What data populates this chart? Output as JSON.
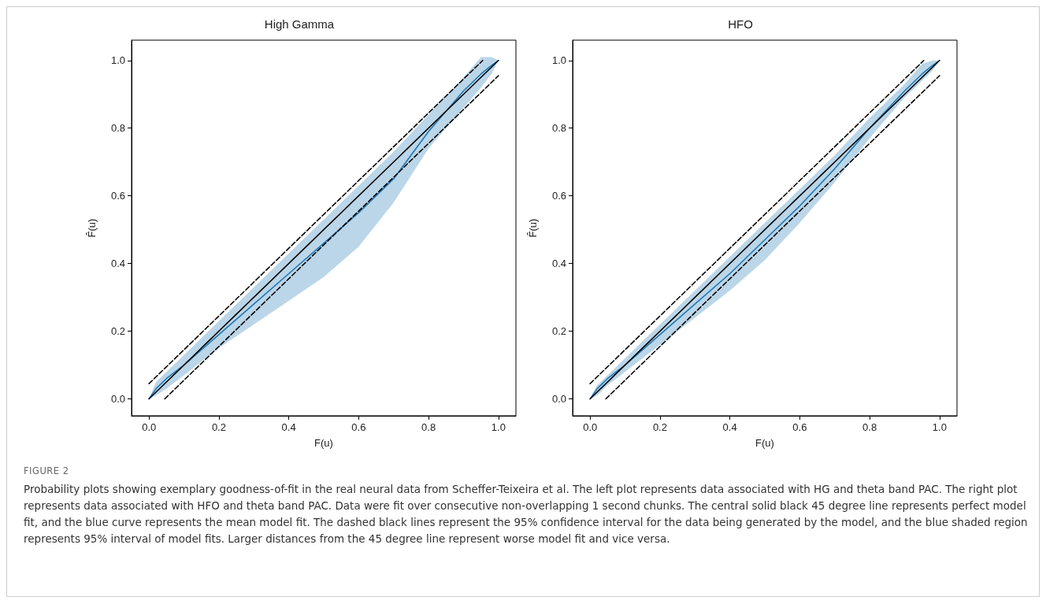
{
  "chart_data": [
    {
      "type": "line",
      "title": "High Gamma",
      "xlabel": "F(u)",
      "ylabel": "F̂(u)",
      "xlim": [
        -0.05,
        1.05
      ],
      "ylim": [
        -0.05,
        1.06
      ],
      "xticks": [
        {
          "value": 0,
          "label": "0.0"
        },
        {
          "value": 0.2,
          "label": "0.2"
        },
        {
          "value": 0.4,
          "label": "0.4"
        },
        {
          "value": 0.6,
          "label": "0.6"
        },
        {
          "value": 0.8,
          "label": "0.8"
        },
        {
          "value": 1,
          "label": "1.0"
        }
      ],
      "yticks": [
        {
          "value": 0,
          "label": "0.0"
        },
        {
          "value": 0.2,
          "label": "0.2"
        },
        {
          "value": 0.4,
          "label": "0.4"
        },
        {
          "value": 0.6,
          "label": "0.6"
        },
        {
          "value": 0.8,
          "label": "0.8"
        },
        {
          "value": 1,
          "label": "1.0"
        }
      ],
      "grid": false,
      "marker": "none",
      "series": [
        {
          "color": "#1f77b4",
          "line_style": "solid",
          "x": [
            0,
            0.02,
            0.05,
            0.1,
            0.2,
            0.3,
            0.4,
            0.5,
            0.6,
            0.7,
            0.8,
            0.9,
            0.95,
            0.98,
            1
          ],
          "values": [
            0,
            0.03,
            0.06,
            0.1,
            0.19,
            0.28,
            0.37,
            0.46,
            0.55,
            0.65,
            0.79,
            0.91,
            0.96,
            0.985,
            1
          ],
          "lower": [
            0,
            0.01,
            0.03,
            0.07,
            0.15,
            0.22,
            0.29,
            0.36,
            0.45,
            0.58,
            0.74,
            0.86,
            0.92,
            0.96,
            1
          ],
          "upper": [
            0,
            0.05,
            0.08,
            0.13,
            0.23,
            0.33,
            0.43,
            0.53,
            0.63,
            0.73,
            0.84,
            0.95,
            1.01,
            1.01,
            1
          ]
        },
        {
          "color": "#000000",
          "line_style": "solid",
          "x": [
            0,
            1
          ],
          "values": [
            0,
            1
          ]
        },
        {
          "color": "#000000",
          "line_style": "dashed",
          "x": [
            0,
            0.955
          ],
          "values": [
            0.045,
            1
          ]
        },
        {
          "color": "#000000",
          "line_style": "dashed",
          "x": [
            0.045,
            1
          ],
          "values": [
            0,
            0.955
          ]
        }
      ],
      "annotations": [
        "FIGURE 2",
        "Probability plots showing exemplary goodness-of-fit in the real neural data from Scheffer-Teixeira et al. The left plot represents data associated with HG and theta band PAC. The right plot represents data associated with HFO and theta band PAC. Data were fit over consecutive non-overlapping 1 second chunks. The central solid black 45 degree line represents perfect model fit, and the blue curve represents the mean model fit. The dashed black lines represent the 95% confidence interval for the data being generated by the model, and the blue shaded region represents 95% interval of model fits. Larger distances from the 45 degree line represent worse model fit and vice versa."
      ]
    },
    {
      "type": "line",
      "title": "HFO",
      "xlabel": "F(u)",
      "ylabel": "F̂(u)",
      "xlim": [
        -0.05,
        1.05
      ],
      "ylim": [
        -0.05,
        1.06
      ],
      "xticks": [
        {
          "value": 0,
          "label": "0.0"
        },
        {
          "value": 0.2,
          "label": "0.2"
        },
        {
          "value": 0.4,
          "label": "0.4"
        },
        {
          "value": 0.6,
          "label": "0.6"
        },
        {
          "value": 0.8,
          "label": "0.8"
        },
        {
          "value": 1,
          "label": "1.0"
        }
      ],
      "yticks": [
        {
          "value": 0,
          "label": "0.0"
        },
        {
          "value": 0.2,
          "label": "0.2"
        },
        {
          "value": 0.4,
          "label": "0.4"
        },
        {
          "value": 0.6,
          "label": "0.6"
        },
        {
          "value": 0.8,
          "label": "0.8"
        },
        {
          "value": 1,
          "label": "1.0"
        }
      ],
      "grid": false,
      "marker": "none",
      "series": [
        {
          "color": "#1f77b4",
          "line_style": "solid",
          "x": [
            0,
            0.02,
            0.05,
            0.1,
            0.2,
            0.3,
            0.4,
            0.5,
            0.6,
            0.7,
            0.8,
            0.9,
            0.95,
            0.98,
            1
          ],
          "values": [
            0,
            0.03,
            0.06,
            0.1,
            0.19,
            0.28,
            0.37,
            0.47,
            0.57,
            0.68,
            0.8,
            0.91,
            0.96,
            0.985,
            1
          ],
          "lower": [
            0,
            0.01,
            0.04,
            0.08,
            0.16,
            0.24,
            0.32,
            0.41,
            0.52,
            0.64,
            0.77,
            0.89,
            0.94,
            0.97,
            1
          ],
          "upper": [
            0,
            0.04,
            0.07,
            0.12,
            0.22,
            0.32,
            0.42,
            0.52,
            0.62,
            0.72,
            0.83,
            0.93,
            0.99,
            1.0,
            1
          ]
        },
        {
          "color": "#000000",
          "line_style": "solid",
          "x": [
            0,
            1
          ],
          "values": [
            0,
            1
          ]
        },
        {
          "color": "#000000",
          "line_style": "dashed",
          "x": [
            0,
            0.955
          ],
          "values": [
            0.045,
            1
          ]
        },
        {
          "color": "#000000",
          "line_style": "dashed",
          "x": [
            0.045,
            1
          ],
          "values": [
            0,
            0.955
          ]
        }
      ]
    }
  ]
}
